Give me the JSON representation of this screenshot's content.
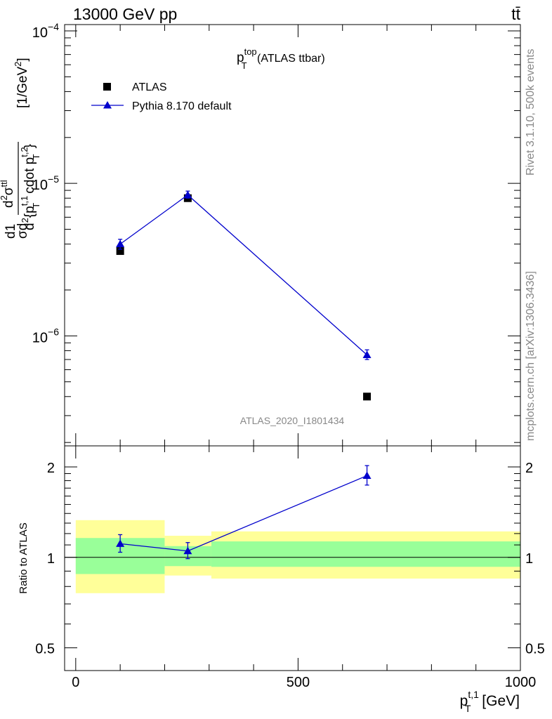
{
  "header": {
    "energy_label": "13000 GeV pp",
    "process_label": "tt̄",
    "side_label_top": "Rivet 3.1.10,  500k events",
    "side_label_bottom": "mcplots.cern.ch [arXiv:1306.3436]",
    "analysis_id": "ATLAS_2020_I1801434"
  },
  "chart_data": [
    {
      "type": "scatter",
      "panel": "main",
      "title": {
        "main": "p",
        "sup": "top",
        "sub": "T",
        "suffix": " (ATLAS ttbar)"
      },
      "ylabel": "d²σ^{tt} / (σ d²{p_T^{t,1} cdot p_T^{t,2}}) [1/GeV²]",
      "ylabel_parts": {
        "frac_top": "d1",
        "frac_bottom": "σd",
        "num": "d",
        "num_sup": "2",
        "num_sigma": "σ",
        "num_sigma_sup": "ttl",
        "den": "d",
        "den_sup": "2",
        "den_p1": "{p",
        "den_p1_sup": "t,1",
        "den_p1_sub": "T",
        "den_cdot": " cdot p",
        "den_p2_sup": "t,2",
        "den_p2_sub": "T",
        "den_close": "}",
        "unit": " [1/GeV",
        "unit_sup": "2",
        "unit_close": "]"
      },
      "y_scale": "log",
      "ylim": [
        1.9e-07,
        0.00011
      ],
      "xlim": [
        -25,
        1000
      ],
      "y_ticks": [
        {
          "value": 0.0001,
          "base": "10",
          "exp": "−4"
        },
        {
          "value": 1e-05,
          "base": "10",
          "exp": "−5"
        },
        {
          "value": 1e-06,
          "base": "10",
          "exp": "−6"
        }
      ],
      "legend_position": "top-left",
      "series": [
        {
          "name": "ATLAS",
          "marker": "square",
          "color": "#000000",
          "x": [
            100,
            252,
            655
          ],
          "y": [
            3.6e-06,
            8e-06,
            4e-07
          ]
        },
        {
          "name": "Pythia 8.170 default",
          "marker": "triangle",
          "color": "#0000cc",
          "line": true,
          "x": [
            100,
            252,
            655
          ],
          "y": [
            4e-06,
            8.4e-06,
            7.5e-07
          ],
          "yerr_low": [
            3.7e-06,
            8e-06,
            7e-07
          ],
          "yerr_high": [
            4.3e-06,
            8.9e-06,
            8.1e-07
          ]
        }
      ]
    },
    {
      "type": "scatter",
      "panel": "ratio",
      "ylabel": "Ratio to ATLAS",
      "xlabel": {
        "main": "p",
        "sup": "t,1",
        "sub": "T",
        "suffix": " [GeV]"
      },
      "y_scale": "log",
      "ylim": [
        0.42,
        2.35
      ],
      "xlim": [
        -25,
        1000
      ],
      "x_ticks": [
        0,
        500,
        1000
      ],
      "y_ticks": [
        0.5,
        1,
        2
      ],
      "reference_line": 1,
      "bands": [
        {
          "x0": 0,
          "x1": 200,
          "inner": [
            0.88,
            1.16
          ],
          "outer": [
            0.76,
            1.33
          ]
        },
        {
          "x0": 200,
          "x1": 305,
          "inner": [
            0.935,
            1.09
          ],
          "outer": [
            0.87,
            1.18
          ]
        },
        {
          "x0": 305,
          "x1": 1000,
          "inner": [
            0.93,
            1.13
          ],
          "outer": [
            0.85,
            1.22
          ]
        }
      ],
      "band_colors": {
        "inner": "#99ff99",
        "outer": "#ffff99"
      },
      "series": [
        {
          "name": "Pythia 8.170 default",
          "color": "#0000cc",
          "x": [
            100,
            252,
            655
          ],
          "y": [
            1.11,
            1.05,
            1.87
          ],
          "yerr_low": [
            1.04,
            0.99,
            1.74
          ],
          "yerr_high": [
            1.19,
            1.12,
            2.02
          ]
        }
      ]
    }
  ]
}
